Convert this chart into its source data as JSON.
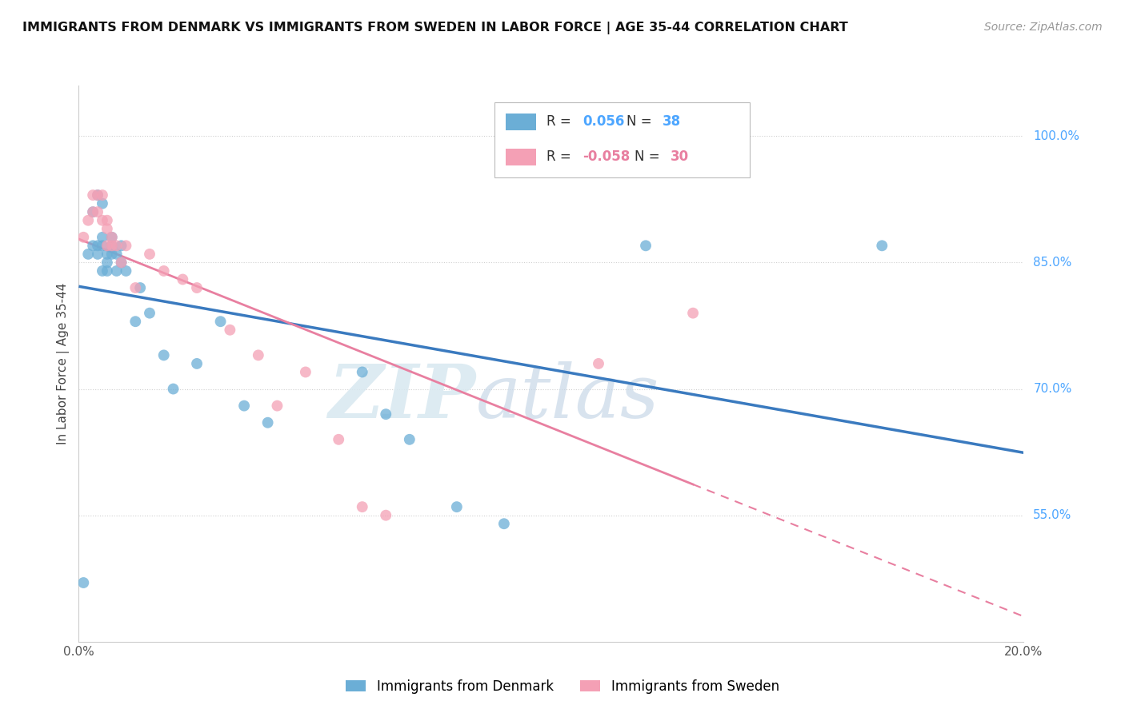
{
  "title": "IMMIGRANTS FROM DENMARK VS IMMIGRANTS FROM SWEDEN IN LABOR FORCE | AGE 35-44 CORRELATION CHART",
  "source": "Source: ZipAtlas.com",
  "ylabel": "In Labor Force | Age 35-44",
  "xlim": [
    0.0,
    0.2
  ],
  "ylim": [
    0.4,
    1.06
  ],
  "denmark_color": "#6baed6",
  "sweden_color": "#f4a0b5",
  "denmark_line_color": "#3a7abf",
  "sweden_line_color": "#e87fa0",
  "denmark_R": "0.056",
  "denmark_N": "38",
  "sweden_R": "-0.058",
  "sweden_N": "30",
  "legend_label_denmark": "Immigrants from Denmark",
  "legend_label_sweden": "Immigrants from Sweden",
  "denmark_x": [
    0.001,
    0.002,
    0.003,
    0.003,
    0.004,
    0.004,
    0.004,
    0.005,
    0.005,
    0.005,
    0.005,
    0.006,
    0.006,
    0.006,
    0.007,
    0.007,
    0.007,
    0.008,
    0.008,
    0.009,
    0.009,
    0.01,
    0.012,
    0.013,
    0.015,
    0.018,
    0.02,
    0.025,
    0.03,
    0.035,
    0.04,
    0.06,
    0.065,
    0.07,
    0.08,
    0.09,
    0.12,
    0.17
  ],
  "denmark_y": [
    0.47,
    0.86,
    0.87,
    0.91,
    0.86,
    0.87,
    0.93,
    0.87,
    0.88,
    0.84,
    0.92,
    0.84,
    0.85,
    0.86,
    0.86,
    0.87,
    0.88,
    0.84,
    0.86,
    0.85,
    0.87,
    0.84,
    0.78,
    0.82,
    0.79,
    0.74,
    0.7,
    0.73,
    0.78,
    0.68,
    0.66,
    0.72,
    0.67,
    0.64,
    0.56,
    0.54,
    0.87,
    0.87
  ],
  "sweden_x": [
    0.001,
    0.002,
    0.003,
    0.003,
    0.004,
    0.004,
    0.005,
    0.005,
    0.006,
    0.006,
    0.006,
    0.007,
    0.007,
    0.008,
    0.009,
    0.01,
    0.012,
    0.015,
    0.018,
    0.022,
    0.025,
    0.032,
    0.038,
    0.042,
    0.048,
    0.055,
    0.06,
    0.065,
    0.11,
    0.13
  ],
  "sweden_y": [
    0.88,
    0.9,
    0.91,
    0.93,
    0.91,
    0.93,
    0.9,
    0.93,
    0.87,
    0.89,
    0.9,
    0.87,
    0.88,
    0.87,
    0.85,
    0.87,
    0.82,
    0.86,
    0.84,
    0.83,
    0.82,
    0.77,
    0.74,
    0.68,
    0.72,
    0.64,
    0.56,
    0.55,
    0.73,
    0.79
  ],
  "watermark_zip": "ZIP",
  "watermark_atlas": "atlas",
  "background_color": "#ffffff",
  "grid_color": "#d0d0d0"
}
